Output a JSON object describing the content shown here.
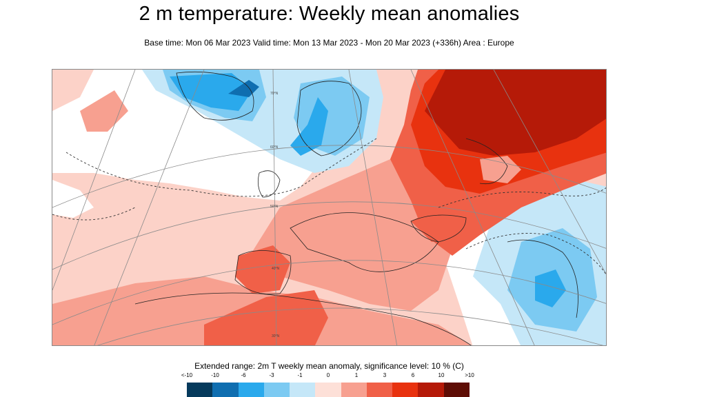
{
  "title": "2 m temperature: Weekly mean anomalies",
  "subtitle": "Base time: Mon 06 Mar 2023 Valid time: Mon 13 Mar 2023 - Mon 20 Mar 2023 (+336h) Area : Europe",
  "map": {
    "area": "Europe",
    "projection": "polar-stereographic",
    "grid_labels": [
      "70°N",
      "60°N",
      "50°N",
      "40°N",
      "30°N"
    ]
  },
  "legend": {
    "title": "Extended range: 2m T weekly mean anomaly, significance level: 10 % (C)",
    "labels": [
      "<-10",
      "-10",
      "-6",
      "-3",
      "-1",
      "0",
      "1",
      "3",
      "6",
      "10",
      ">10"
    ],
    "colors": [
      "#053a5c",
      "#0f6eb0",
      "#2aa9ec",
      "#7ccaf2",
      "#c5e7f8",
      "#fde0d8",
      "#f7a090",
      "#f06048",
      "#e8320f",
      "#b51a08",
      "#5e0d05"
    ]
  }
}
